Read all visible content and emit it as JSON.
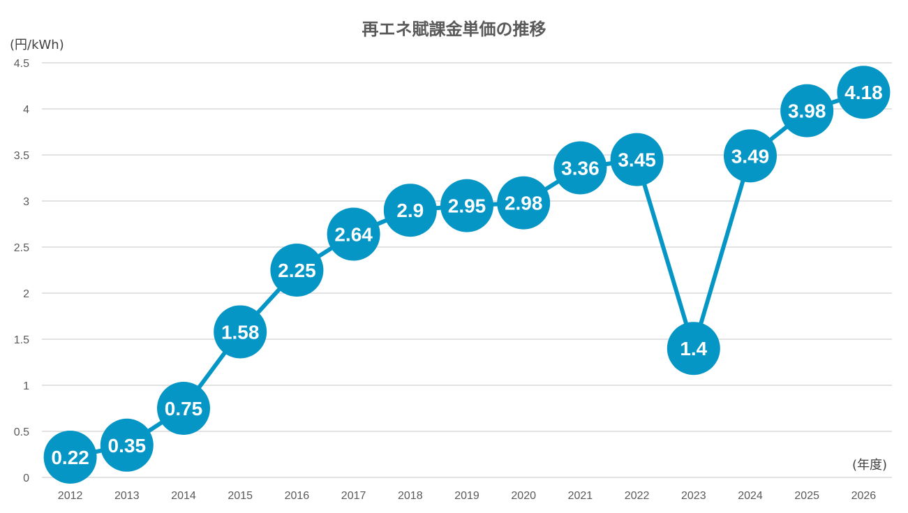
{
  "chart_data": {
    "type": "line",
    "title": "再エネ賦課金単価の推移",
    "ylabel": "(円/kWh)",
    "xlabel": "(年度)",
    "categories": [
      "2012",
      "2013",
      "2014",
      "2015",
      "2016",
      "2017",
      "2018",
      "2019",
      "2020",
      "2021",
      "2022",
      "2023",
      "2024",
      "2025",
      "2026"
    ],
    "values": [
      0.22,
      0.35,
      0.75,
      1.58,
      2.25,
      2.64,
      2.9,
      2.95,
      2.98,
      3.36,
      3.45,
      1.4,
      3.49,
      3.98,
      4.18
    ],
    "data_labels": [
      "0.22",
      "0.35",
      "0.75",
      "1.58",
      "2.25",
      "2.64",
      "2.9",
      "2.95",
      "2.98",
      "3.36",
      "3.45",
      "1.4",
      "3.49",
      "3.98",
      "4.18"
    ],
    "yticks": [
      "0",
      "0.5",
      "1",
      "1.5",
      "2",
      "2.5",
      "3",
      "3.5",
      "4",
      "4.5"
    ],
    "ylim": [
      0,
      4.5
    ],
    "grid": true,
    "legend": "none",
    "series_color": "#0596c6",
    "label_color": "#ffffff"
  }
}
